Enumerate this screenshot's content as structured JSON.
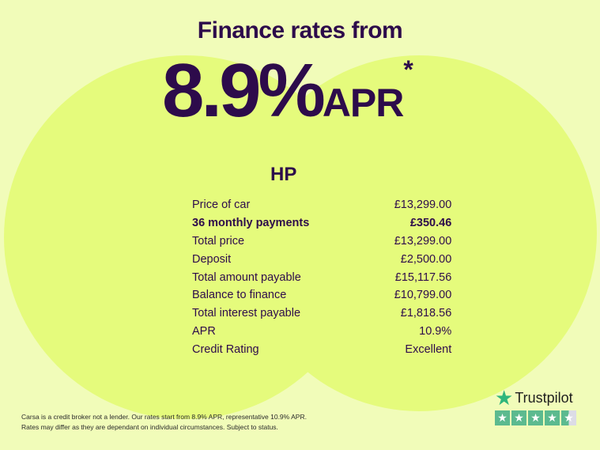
{
  "headline": "Finance rates from",
  "rate": {
    "value": "8.9%",
    "unit": "APR",
    "asterisk": "*"
  },
  "section_title": "HP",
  "rows": [
    {
      "label": "Price of car",
      "value": "£13,299.00",
      "bold": false
    },
    {
      "label": "36 monthly payments",
      "value": "£350.46",
      "bold": true
    },
    {
      "label": "Total price",
      "value": "£13,299.00",
      "bold": false
    },
    {
      "label": "Deposit",
      "value": "£2,500.00",
      "bold": false
    },
    {
      "label": "Total amount payable",
      "value": "£15,117.56",
      "bold": false
    },
    {
      "label": "Balance to finance",
      "value": "£10,799.00",
      "bold": false
    },
    {
      "label": "Total interest payable",
      "value": "£1,818.56",
      "bold": false
    },
    {
      "label": "APR",
      "value": "10.9%",
      "bold": false
    },
    {
      "label": "Credit Rating",
      "value": "Excellent",
      "bold": false
    }
  ],
  "disclaimer": {
    "line1": "Carsa is a credit broker not a lender. Our rates start from 8.9% APR, representative 10.9% APR.",
    "line2": "Rates may differ as they are dependant on individual circumstances. Subject to status."
  },
  "trustpilot": {
    "name": "Trustpilot",
    "rating_stars": 4.5,
    "icon": "star-icon",
    "color": "#5cba8f"
  },
  "colors": {
    "background": "#f1fcb9",
    "circles": "#e5fb7c",
    "text": "#2d0b4b"
  }
}
